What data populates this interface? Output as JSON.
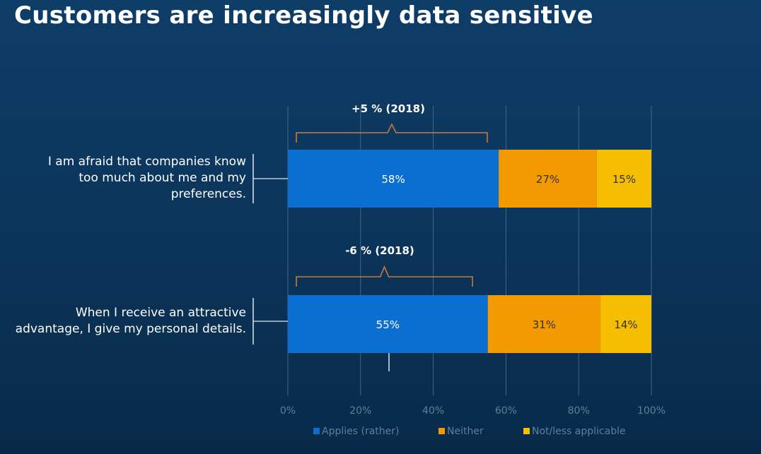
{
  "slide": {
    "title": "Customers are increasingly data sensitive"
  },
  "chart_data": {
    "type": "bar",
    "orientation": "horizontal",
    "stacked": true,
    "categories": [
      "I am afraid that companies know too much about me and my preferences.",
      "When I receive an attractive advantage, I give my personal details."
    ],
    "category_lines": [
      [
        "I am afraid that companies know",
        "too much about me and my",
        "preferences."
      ],
      [
        "When I receive an attractive",
        "advantage, I give my personal details."
      ]
    ],
    "series": [
      {
        "name": "Applies (rather)",
        "values": [
          58,
          55
        ],
        "color": "#0a6fd0"
      },
      {
        "name": "Neither",
        "values": [
          27,
          31
        ],
        "color": "#f29a00"
      },
      {
        "name": "Not/less applicable",
        "values": [
          15,
          14
        ],
        "color": "#f5be00"
      }
    ],
    "data_labels": [
      [
        "58%",
        "27%",
        "15%"
      ],
      [
        "55%",
        "31%",
        "14%"
      ]
    ],
    "annotations": [
      "+5 % (2018)",
      "-6 % (2018)"
    ],
    "xlim": [
      0,
      100
    ],
    "xticks": [
      "0%",
      "20%",
      "40%",
      "60%",
      "80%",
      "100%"
    ],
    "grid": true,
    "legend_position": "bottom"
  }
}
